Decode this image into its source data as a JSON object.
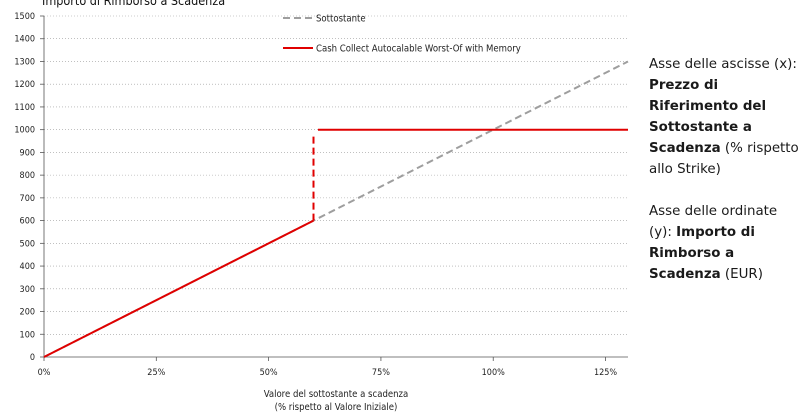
{
  "chart_data": {
    "type": "line",
    "title": "Importo di Rimborso a Scadenza",
    "xlabel": [
      "Valore del sottostante a scadenza",
      "(% rispetto al Valore Iniziale)"
    ],
    "ylabel": "",
    "xlim": [
      0,
      130
    ],
    "ylim": [
      0,
      1500
    ],
    "xticks": [
      0,
      25,
      50,
      75,
      100,
      125
    ],
    "xtick_labels": [
      "0%",
      "25%",
      "50%",
      "75%",
      "100%",
      "125%"
    ],
    "yticks": [
      0,
      100,
      200,
      300,
      400,
      500,
      600,
      700,
      800,
      900,
      1000,
      1100,
      1200,
      1300,
      1400,
      1500
    ],
    "ytick_labels": [
      "0",
      "100",
      "200",
      "300",
      "400",
      "500",
      "600",
      "700",
      "800",
      "900",
      "1000",
      "1100",
      "1200",
      "1300",
      "1400",
      "1500"
    ],
    "grid": "horizontal dotted",
    "legend_position": "top-center",
    "series": [
      {
        "name": "Sottostante",
        "style": "dashed",
        "color": "#9e9e9e",
        "points": [
          [
            0,
            0
          ],
          [
            130,
            1300
          ]
        ]
      },
      {
        "name": "Cash Collect Autocalable Worst-Of with Memory",
        "style": "solid",
        "color": "#e00000",
        "points": [
          [
            0,
            0
          ],
          [
            60,
            600
          ]
        ]
      },
      {
        "name": "Cash Collect Autocalable Worst-Of with Memory",
        "style": "dashed",
        "color": "#e00000",
        "points": [
          [
            60,
            600
          ],
          [
            60,
            980
          ]
        ]
      },
      {
        "name": "Cash Collect Autocalable Worst-Of with Memory",
        "style": "solid",
        "color": "#e00000",
        "points": [
          [
            61,
            1000
          ],
          [
            130,
            1000
          ]
        ]
      }
    ]
  },
  "notes": {
    "x_axis": {
      "prefix": "Asse delle ascisse (x): ",
      "bold": "Prezzo di Riferimento del Sottostante a Scadenza",
      "suffix": " (% rispetto allo Strike)"
    },
    "y_axis": {
      "prefix": "Asse delle ordinate (y): ",
      "bold": "Importo di Rimborso a Scadenza",
      "suffix": " (EUR)"
    }
  }
}
